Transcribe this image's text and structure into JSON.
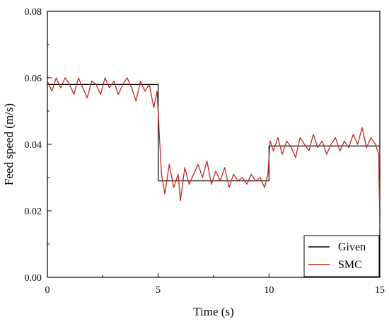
{
  "chart_data": {
    "type": "line",
    "xlabel": "Time (s)",
    "ylabel": "Feed speed (m/s)",
    "xlim": [
      0,
      15
    ],
    "ylim": [
      0,
      0.08
    ],
    "xticks": [
      "0",
      "5",
      "10",
      "15"
    ],
    "yticks": [
      "0.00",
      "0.02",
      "0.04",
      "0.06",
      "0.08"
    ],
    "grid": false,
    "legend_position": "bottom-right",
    "series": [
      {
        "name": "Given",
        "color": "#000000",
        "x": [
          0,
          5,
          5,
          10,
          10,
          15
        ],
        "y": [
          0.058,
          0.058,
          0.029,
          0.029,
          0.0395,
          0.0395
        ]
      },
      {
        "name": "SMC",
        "color": "#c0281b",
        "x": [
          0,
          0.2,
          0.4,
          0.6,
          0.8,
          1.0,
          1.2,
          1.4,
          1.6,
          1.8,
          2.0,
          2.2,
          2.4,
          2.6,
          2.8,
          3.0,
          3.2,
          3.4,
          3.6,
          3.8,
          4.0,
          4.2,
          4.4,
          4.6,
          4.8,
          4.95,
          5.05,
          5.15,
          5.3,
          5.5,
          5.7,
          5.9,
          6.0,
          6.2,
          6.4,
          6.6,
          6.8,
          7.0,
          7.2,
          7.4,
          7.6,
          7.8,
          8.0,
          8.2,
          8.4,
          8.6,
          8.8,
          9.0,
          9.2,
          9.4,
          9.6,
          9.8,
          9.95,
          10.05,
          10.2,
          10.4,
          10.6,
          10.8,
          11.0,
          11.2,
          11.4,
          11.6,
          11.8,
          12.0,
          12.2,
          12.4,
          12.6,
          12.8,
          13.0,
          13.2,
          13.4,
          13.6,
          13.8,
          14.0,
          14.2,
          14.4,
          14.6,
          14.8,
          14.95,
          15.0
        ],
        "y": [
          0.059,
          0.056,
          0.06,
          0.057,
          0.06,
          0.058,
          0.055,
          0.06,
          0.057,
          0.054,
          0.059,
          0.058,
          0.055,
          0.06,
          0.057,
          0.059,
          0.055,
          0.058,
          0.06,
          0.057,
          0.053,
          0.059,
          0.056,
          0.058,
          0.051,
          0.056,
          0.043,
          0.031,
          0.025,
          0.034,
          0.027,
          0.031,
          0.023,
          0.033,
          0.028,
          0.031,
          0.034,
          0.03,
          0.035,
          0.028,
          0.032,
          0.029,
          0.033,
          0.027,
          0.031,
          0.029,
          0.03,
          0.028,
          0.031,
          0.029,
          0.03,
          0.027,
          0.031,
          0.041,
          0.038,
          0.042,
          0.037,
          0.041,
          0.039,
          0.036,
          0.042,
          0.04,
          0.038,
          0.043,
          0.039,
          0.041,
          0.037,
          0.04,
          0.042,
          0.038,
          0.041,
          0.039,
          0.043,
          0.04,
          0.045,
          0.039,
          0.042,
          0.04,
          0.037,
          0.015
        ]
      }
    ]
  }
}
